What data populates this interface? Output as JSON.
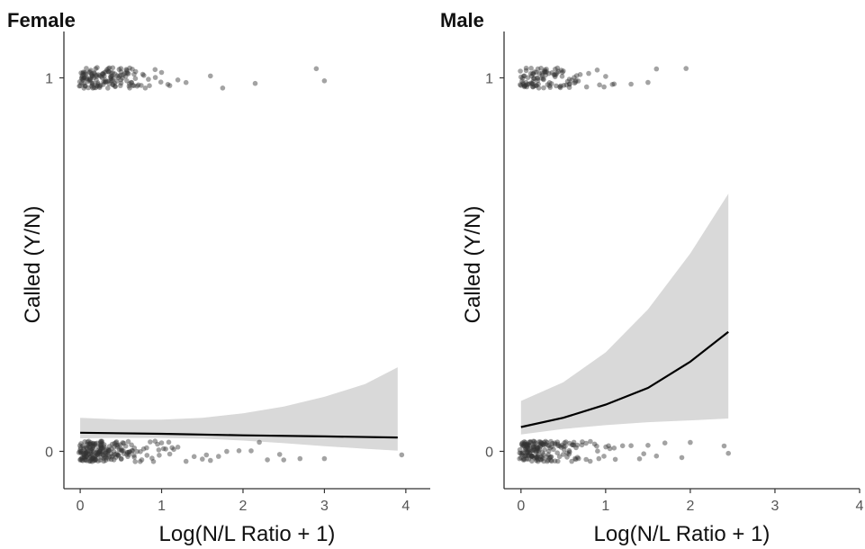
{
  "chart_data": [
    {
      "type": "scatter",
      "title": "Female",
      "xlabel": "Log(N/L Ratio + 1)",
      "ylabel": "Called (Y/N)",
      "xlim": [
        -0.2,
        4.3
      ],
      "ylim": [
        -0.1,
        1.1
      ],
      "x_ticks": [
        "0",
        "1",
        "2",
        "3",
        "4"
      ],
      "y_ticks": [
        "0",
        "1"
      ],
      "grid": false,
      "fit_line": {
        "x": [
          0,
          1,
          2,
          3,
          3.9
        ],
        "y": [
          0.05,
          0.047,
          0.043,
          0.04,
          0.037
        ]
      },
      "confidence_band": {
        "x": [
          0,
          0.5,
          1,
          1.5,
          2,
          2.5,
          3,
          3.5,
          3.9
        ],
        "lower": [
          0.035,
          0.036,
          0.036,
          0.034,
          0.029,
          0.022,
          0.014,
          0.007,
          0.002
        ],
        "upper": [
          0.09,
          0.085,
          0.085,
          0.09,
          0.102,
          0.12,
          0.146,
          0.18,
          0.225
        ]
      },
      "points_y1_x": [
        0.0,
        0.02,
        0.04,
        0.05,
        0.06,
        0.08,
        0.1,
        0.12,
        0.13,
        0.15,
        0.17,
        0.19,
        0.2,
        0.22,
        0.24,
        0.26,
        0.28,
        0.3,
        0.32,
        0.34,
        0.36,
        0.38,
        0.4,
        0.42,
        0.45,
        0.48,
        0.5,
        0.52,
        0.55,
        0.58,
        0.6,
        0.63,
        0.66,
        0.7,
        0.75,
        0.8,
        0.85,
        0.92,
        1.0,
        1.1,
        1.2,
        1.3,
        1.6,
        1.75,
        2.15,
        2.9,
        3.0
      ],
      "points_y0_x": [
        0.0,
        0.01,
        0.02,
        0.03,
        0.04,
        0.05,
        0.06,
        0.07,
        0.08,
        0.09,
        0.1,
        0.11,
        0.12,
        0.13,
        0.14,
        0.15,
        0.16,
        0.17,
        0.18,
        0.19,
        0.2,
        0.21,
        0.22,
        0.23,
        0.24,
        0.25,
        0.26,
        0.27,
        0.28,
        0.29,
        0.3,
        0.32,
        0.34,
        0.36,
        0.38,
        0.4,
        0.42,
        0.44,
        0.46,
        0.48,
        0.5,
        0.53,
        0.56,
        0.6,
        0.63,
        0.66,
        0.7,
        0.74,
        0.78,
        0.82,
        0.86,
        0.9,
        0.95,
        1.0,
        1.05,
        1.1,
        1.15,
        1.2,
        1.3,
        1.4,
        1.5,
        1.55,
        1.6,
        1.7,
        1.8,
        1.95,
        2.1,
        2.2,
        2.3,
        2.45,
        2.5,
        2.7,
        3.0,
        3.95
      ]
    },
    {
      "type": "scatter",
      "title": "Male",
      "xlabel": "Log(N/L Ratio + 1)",
      "ylabel": "Called (Y/N)",
      "xlim": [
        -0.2,
        4.0
      ],
      "ylim": [
        -0.1,
        1.1
      ],
      "x_ticks": [
        "0",
        "1",
        "2",
        "3",
        "4"
      ],
      "y_ticks": [
        "0",
        "1"
      ],
      "grid": false,
      "fit_line": {
        "x": [
          0,
          0.5,
          1,
          1.5,
          2,
          2.45
        ],
        "y": [
          0.065,
          0.09,
          0.125,
          0.17,
          0.24,
          0.32
        ]
      },
      "confidence_band": {
        "x": [
          0,
          0.5,
          1,
          1.5,
          2,
          2.45
        ],
        "lower": [
          0.045,
          0.06,
          0.07,
          0.078,
          0.083,
          0.088
        ],
        "upper": [
          0.135,
          0.185,
          0.265,
          0.38,
          0.53,
          0.69
        ]
      },
      "points_y1_x": [
        0.0,
        0.02,
        0.04,
        0.06,
        0.08,
        0.1,
        0.12,
        0.14,
        0.16,
        0.18,
        0.2,
        0.22,
        0.25,
        0.28,
        0.3,
        0.33,
        0.36,
        0.4,
        0.43,
        0.47,
        0.5,
        0.55,
        0.6,
        0.65,
        0.7,
        0.8,
        0.9,
        1.0,
        1.1,
        1.3,
        1.5,
        1.6,
        1.95
      ],
      "points_y0_x": [
        0.0,
        0.01,
        0.02,
        0.03,
        0.04,
        0.05,
        0.06,
        0.07,
        0.08,
        0.09,
        0.1,
        0.11,
        0.12,
        0.13,
        0.14,
        0.15,
        0.16,
        0.17,
        0.18,
        0.19,
        0.2,
        0.21,
        0.22,
        0.23,
        0.24,
        0.25,
        0.27,
        0.29,
        0.31,
        0.33,
        0.35,
        0.37,
        0.4,
        0.43,
        0.46,
        0.5,
        0.53,
        0.57,
        0.6,
        0.64,
        0.68,
        0.72,
        0.77,
        0.82,
        0.87,
        0.92,
        0.98,
        1.05,
        1.1,
        1.2,
        1.3,
        1.4,
        1.45,
        1.5,
        1.6,
        1.7,
        1.9,
        2.0,
        2.4,
        2.45
      ]
    }
  ],
  "colors": {
    "points": "#333333",
    "band": "#d9d9d9",
    "line": "#000000",
    "axis": "#333333"
  }
}
